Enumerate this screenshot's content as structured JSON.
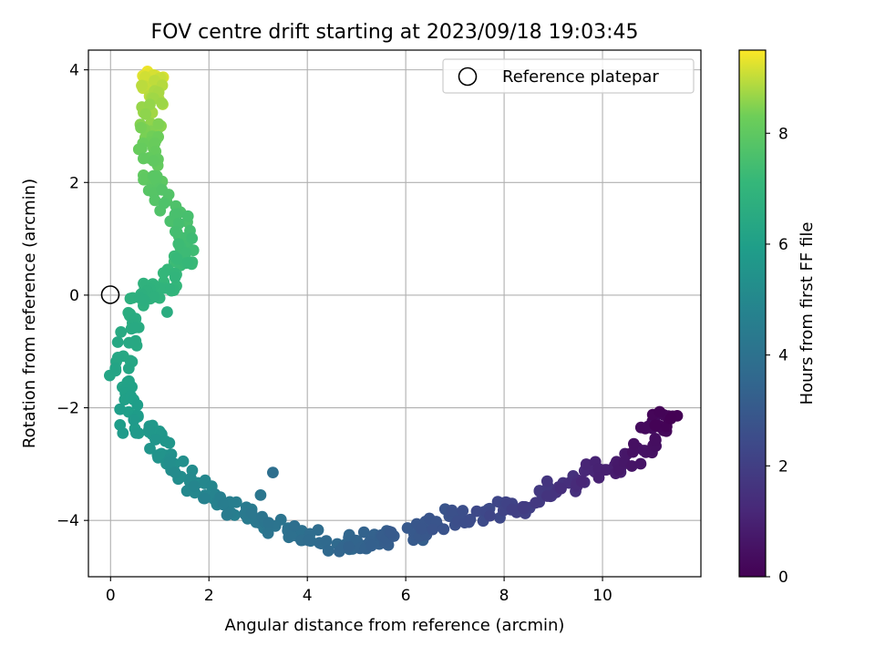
{
  "chart_data": {
    "type": "scatter",
    "title": "FOV centre drift starting at 2023/09/18 19:03:45",
    "xlabel": "Angular distance from reference (arcmin)",
    "ylabel": "Rotation from reference (arcmin)",
    "xlim": [
      -0.45,
      12.0
    ],
    "ylim": [
      -5.0,
      4.35
    ],
    "xticks": [
      0,
      2,
      4,
      6,
      8,
      10
    ],
    "yticks": [
      -4,
      -2,
      0,
      2,
      4
    ],
    "xtick_labels": [
      "0",
      "2",
      "4",
      "6",
      "8",
      "10"
    ],
    "ytick_labels": [
      "−4",
      "−2",
      "0",
      "2",
      "4"
    ],
    "grid": true,
    "legend": {
      "position": "top-right",
      "entries": [
        {
          "label": "Reference platepar",
          "marker": "open-circle"
        }
      ]
    },
    "reference_point": {
      "x": 0,
      "y": 0
    },
    "colorbar": {
      "label": "Hours from first FF file",
      "colormap": "viridis",
      "range": [
        0,
        9.5
      ],
      "ticks": [
        0,
        2,
        4,
        6,
        8
      ],
      "tick_labels": [
        "0",
        "2",
        "4",
        "6",
        "8"
      ]
    },
    "path_keypoints": [
      {
        "t": 0.0,
        "x": 11.35,
        "y": -2.2
      },
      {
        "t": 0.3,
        "x": 11.05,
        "y": -2.3
      },
      {
        "t": 0.6,
        "x": 10.7,
        "y": -2.9
      },
      {
        "t": 1.0,
        "x": 10.0,
        "y": -3.1
      },
      {
        "t": 1.5,
        "x": 9.2,
        "y": -3.35
      },
      {
        "t": 2.0,
        "x": 8.4,
        "y": -3.7
      },
      {
        "t": 2.3,
        "x": 7.8,
        "y": -3.8
      },
      {
        "t": 2.7,
        "x": 7.0,
        "y": -3.95
      },
      {
        "t": 3.0,
        "x": 6.0,
        "y": -4.2
      },
      {
        "t": 3.3,
        "x": 5.2,
        "y": -4.35
      },
      {
        "t": 3.6,
        "x": 4.6,
        "y": -4.4
      },
      {
        "t": 4.0,
        "x": 3.6,
        "y": -4.2
      },
      {
        "t": 4.4,
        "x": 2.7,
        "y": -3.9
      },
      {
        "t": 4.8,
        "x": 2.0,
        "y": -3.6
      },
      {
        "t": 5.2,
        "x": 1.4,
        "y": -3.2
      },
      {
        "t": 5.6,
        "x": 1.0,
        "y": -2.6
      },
      {
        "t": 5.9,
        "x": 0.4,
        "y": -2.2
      },
      {
        "t": 6.2,
        "x": 0.15,
        "y": -1.5
      },
      {
        "t": 6.5,
        "x": 0.4,
        "y": -0.6
      },
      {
        "t": 6.8,
        "x": 0.7,
        "y": 0.0
      },
      {
        "t": 7.0,
        "x": 1.2,
        "y": 0.2
      },
      {
        "t": 7.3,
        "x": 1.5,
        "y": 0.8
      },
      {
        "t": 7.6,
        "x": 1.35,
        "y": 1.4
      },
      {
        "t": 7.9,
        "x": 0.95,
        "y": 2.0
      },
      {
        "t": 8.2,
        "x": 0.75,
        "y": 2.6
      },
      {
        "t": 8.6,
        "x": 0.85,
        "y": 3.2
      },
      {
        "t": 9.0,
        "x": 0.85,
        "y": 3.7
      },
      {
        "t": 9.4,
        "x": 0.85,
        "y": 3.85
      }
    ],
    "extra_points": [
      {
        "t": 3.9,
        "x": 3.3,
        "y": -3.15
      },
      {
        "t": 4.2,
        "x": 3.05,
        "y": -3.55
      },
      {
        "t": 4.1,
        "x": 3.35,
        "y": -4.1
      },
      {
        "t": 3.6,
        "x": 5.2,
        "y": -4.5
      },
      {
        "t": 3.5,
        "x": 4.65,
        "y": -4.55
      },
      {
        "t": 3.2,
        "x": 6.35,
        "y": -4.35
      },
      {
        "t": 2.8,
        "x": 6.8,
        "y": -3.8
      },
      {
        "t": 5.8,
        "x": 0.25,
        "y": -2.45
      },
      {
        "t": 6.6,
        "x": 1.15,
        "y": -0.3
      },
      {
        "t": 7.2,
        "x": 1.65,
        "y": 0.55
      },
      {
        "t": 6.95,
        "x": 0.45,
        "y": -0.05
      }
    ]
  }
}
